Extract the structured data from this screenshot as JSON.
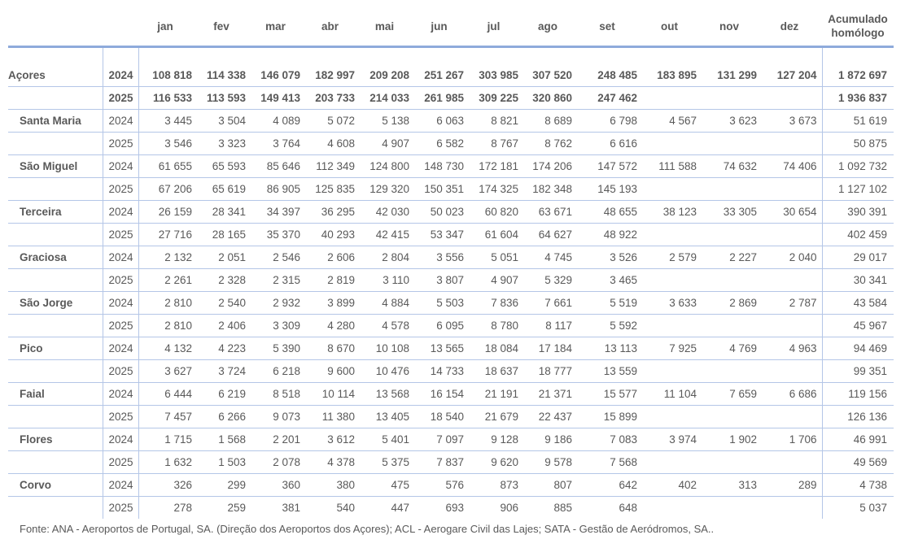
{
  "header": {
    "months": [
      "jan",
      "fev",
      "mar",
      "abr",
      "mai",
      "jun",
      "jul",
      "ago",
      "set",
      "out",
      "nov",
      "dez"
    ],
    "total_line1": "Acumulado",
    "total_line2": "homólogo"
  },
  "regions": [
    {
      "name": "Açores",
      "bold": true,
      "rows": [
        {
          "year": "2024",
          "values": [
            "108 818",
            "114 338",
            "146 079",
            "182 997",
            "209 208",
            "251 267",
            "303 985",
            "307 520",
            "248 485",
            "183 895",
            "131 299",
            "127 204"
          ],
          "total": "1 872 697"
        },
        {
          "year": "2025",
          "values": [
            "116 533",
            "113 593",
            "149 413",
            "203 733",
            "214 033",
            "261 985",
            "309 225",
            "320 860",
            "247 462",
            "",
            "",
            ""
          ],
          "total": "1 936 837"
        }
      ]
    },
    {
      "name": "Santa Maria",
      "rows": [
        {
          "year": "2024",
          "values": [
            "3 445",
            "3 504",
            "4 089",
            "5 072",
            "5 138",
            "6 063",
            "8 821",
            "8 689",
            "6 798",
            "4 567",
            "3 623",
            "3 673"
          ],
          "total": "51 619"
        },
        {
          "year": "2025",
          "values": [
            "3 546",
            "3 323",
            "3 764",
            "4 608",
            "4 907",
            "6 582",
            "8 767",
            "8 762",
            "6 616",
            "",
            "",
            ""
          ],
          "total": "50 875"
        }
      ]
    },
    {
      "name": "São Miguel",
      "rows": [
        {
          "year": "2024",
          "values": [
            "61 655",
            "65 593",
            "85 646",
            "112 349",
            "124 800",
            "148 730",
            "172 181",
            "174 206",
            "147 572",
            "111 588",
            "74 632",
            "74 406"
          ],
          "total": "1 092 732"
        },
        {
          "year": "2025",
          "values": [
            "67 206",
            "65 619",
            "86 905",
            "125 835",
            "129 320",
            "150 351",
            "174 325",
            "182 348",
            "145 193",
            "",
            "",
            ""
          ],
          "total": "1 127 102"
        }
      ]
    },
    {
      "name": "Terceira",
      "rows": [
        {
          "year": "2024",
          "values": [
            "26 159",
            "28 341",
            "34 397",
            "36 295",
            "42 030",
            "50 023",
            "60 820",
            "63 671",
            "48 655",
            "38 123",
            "33 305",
            "30 654"
          ],
          "total": "390 391"
        },
        {
          "year": "2025",
          "values": [
            "27 716",
            "28 165",
            "35 370",
            "40 293",
            "42 415",
            "53 347",
            "61 604",
            "64 627",
            "48 922",
            "",
            "",
            ""
          ],
          "total": "402 459"
        }
      ]
    },
    {
      "name": "Graciosa",
      "rows": [
        {
          "year": "2024",
          "values": [
            "2 132",
            "2 051",
            "2 546",
            "2 606",
            "2 804",
            "3 556",
            "5 051",
            "4 745",
            "3 526",
            "2 579",
            "2 227",
            "2 040"
          ],
          "total": "29 017"
        },
        {
          "year": "2025",
          "values": [
            "2 261",
            "2 328",
            "2 315",
            "2 819",
            "3 110",
            "3 807",
            "4 907",
            "5 329",
            "3 465",
            "",
            "",
            ""
          ],
          "total": "30 341"
        }
      ]
    },
    {
      "name": "São Jorge",
      "rows": [
        {
          "year": "2024",
          "values": [
            "2 810",
            "2 540",
            "2 932",
            "3 899",
            "4 884",
            "5 503",
            "7 836",
            "7 661",
            "5 519",
            "3 633",
            "2 869",
            "2 787"
          ],
          "total": "43 584"
        },
        {
          "year": "2025",
          "values": [
            "2 810",
            "2 406",
            "3 309",
            "4 280",
            "4 578",
            "6 095",
            "8 780",
            "8 117",
            "5 592",
            "",
            "",
            ""
          ],
          "total": "45 967"
        }
      ]
    },
    {
      "name": "Pico",
      "rows": [
        {
          "year": "2024",
          "values": [
            "4 132",
            "4 223",
            "5 390",
            "8 670",
            "10 108",
            "13 565",
            "18 084",
            "17 184",
            "13 113",
            "7 925",
            "4 769",
            "4 963"
          ],
          "total": "94 469"
        },
        {
          "year": "2025",
          "values": [
            "3 627",
            "3 724",
            "6 218",
            "9 600",
            "10 476",
            "14 733",
            "18 637",
            "18 777",
            "13 559",
            "",
            "",
            ""
          ],
          "total": "99 351"
        }
      ]
    },
    {
      "name": "Faial",
      "rows": [
        {
          "year": "2024",
          "values": [
            "6 444",
            "6 219",
            "8 518",
            "10 114",
            "13 568",
            "16 154",
            "21 191",
            "21 371",
            "15 577",
            "11 104",
            "7 659",
            "6 686"
          ],
          "total": "119 156"
        },
        {
          "year": "2025",
          "values": [
            "7 457",
            "6 266",
            "9 073",
            "11 380",
            "13 405",
            "18 540",
            "21 679",
            "22 437",
            "15 899",
            "",
            "",
            ""
          ],
          "total": "126 136"
        }
      ]
    },
    {
      "name": "Flores",
      "rows": [
        {
          "year": "2024",
          "values": [
            "1 715",
            "1 568",
            "2 201",
            "3 612",
            "5 401",
            "7 097",
            "9 128",
            "9 186",
            "7 083",
            "3 974",
            "1 902",
            "1 706"
          ],
          "total": "46 991"
        },
        {
          "year": "2025",
          "values": [
            "1 632",
            "1 503",
            "2 078",
            "4 378",
            "5 375",
            "7 837",
            "9 620",
            "9 578",
            "7 568",
            "",
            "",
            ""
          ],
          "total": "49 569"
        }
      ]
    },
    {
      "name": "Corvo",
      "rows": [
        {
          "year": "2024",
          "values": [
            "326",
            "299",
            "360",
            "380",
            "475",
            "576",
            "873",
            "807",
            "642",
            "402",
            "313",
            "289"
          ],
          "total": "4 738"
        },
        {
          "year": "2025",
          "values": [
            "278",
            "259",
            "381",
            "540",
            "447",
            "693",
            "906",
            "885",
            "648",
            "",
            "",
            ""
          ],
          "total": "5 037"
        }
      ]
    }
  ],
  "footnote": "Fonte: ANA - Aeroportos de Portugal, SA. (Direção dos Aeroportos dos Açores); ACL - Aerogare Civil das Lajes; SATA - Gestão de Aeródromos, SA..",
  "colors": {
    "header_rule": "#8eaadb",
    "grid": "#b4c6e7",
    "text": "#595959"
  }
}
